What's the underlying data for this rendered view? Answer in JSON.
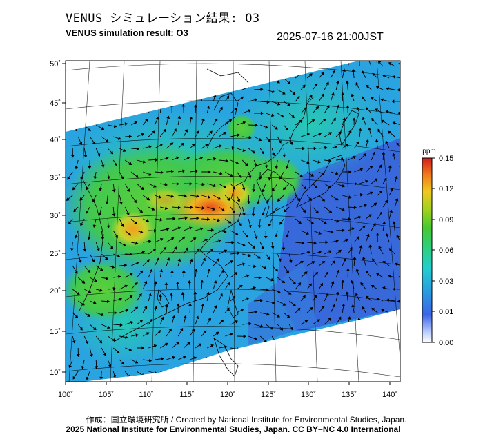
{
  "header": {
    "title_jp": "VENUS シミュレーション結果: O3",
    "title_en": "VENUS simulation result: O3",
    "timestamp": "2025-07-16 21:00JST"
  },
  "map": {
    "lat_ticks": [
      "50˚",
      "45˚",
      "40˚",
      "35˚",
      "30˚",
      "25˚",
      "20˚",
      "15˚",
      "10˚"
    ],
    "lon_ticks": [
      "100˚",
      "105˚",
      "110˚",
      "115˚",
      "120˚",
      "125˚",
      "130˚",
      "135˚",
      "140˚"
    ],
    "field": "O3 concentration with wind vectors",
    "colors": {
      "low": "#3a5fd8",
      "mid": "#22c8c8",
      "green": "#3cc83c",
      "high": "#e83a1a"
    }
  },
  "colorbar": {
    "unit": "ppm",
    "labels": [
      "0.15",
      "0.12",
      "0.09",
      "0.06",
      "0.03",
      "0.01",
      "0.00"
    ]
  },
  "footer": {
    "credit_line1": "作成：国立環境研究所 / Created by National Institute for Environmental Studies, Japan.",
    "credit_line2": "2025 National Institute for Environmental Studies, Japan. CC BY−NC 4.0 International"
  }
}
